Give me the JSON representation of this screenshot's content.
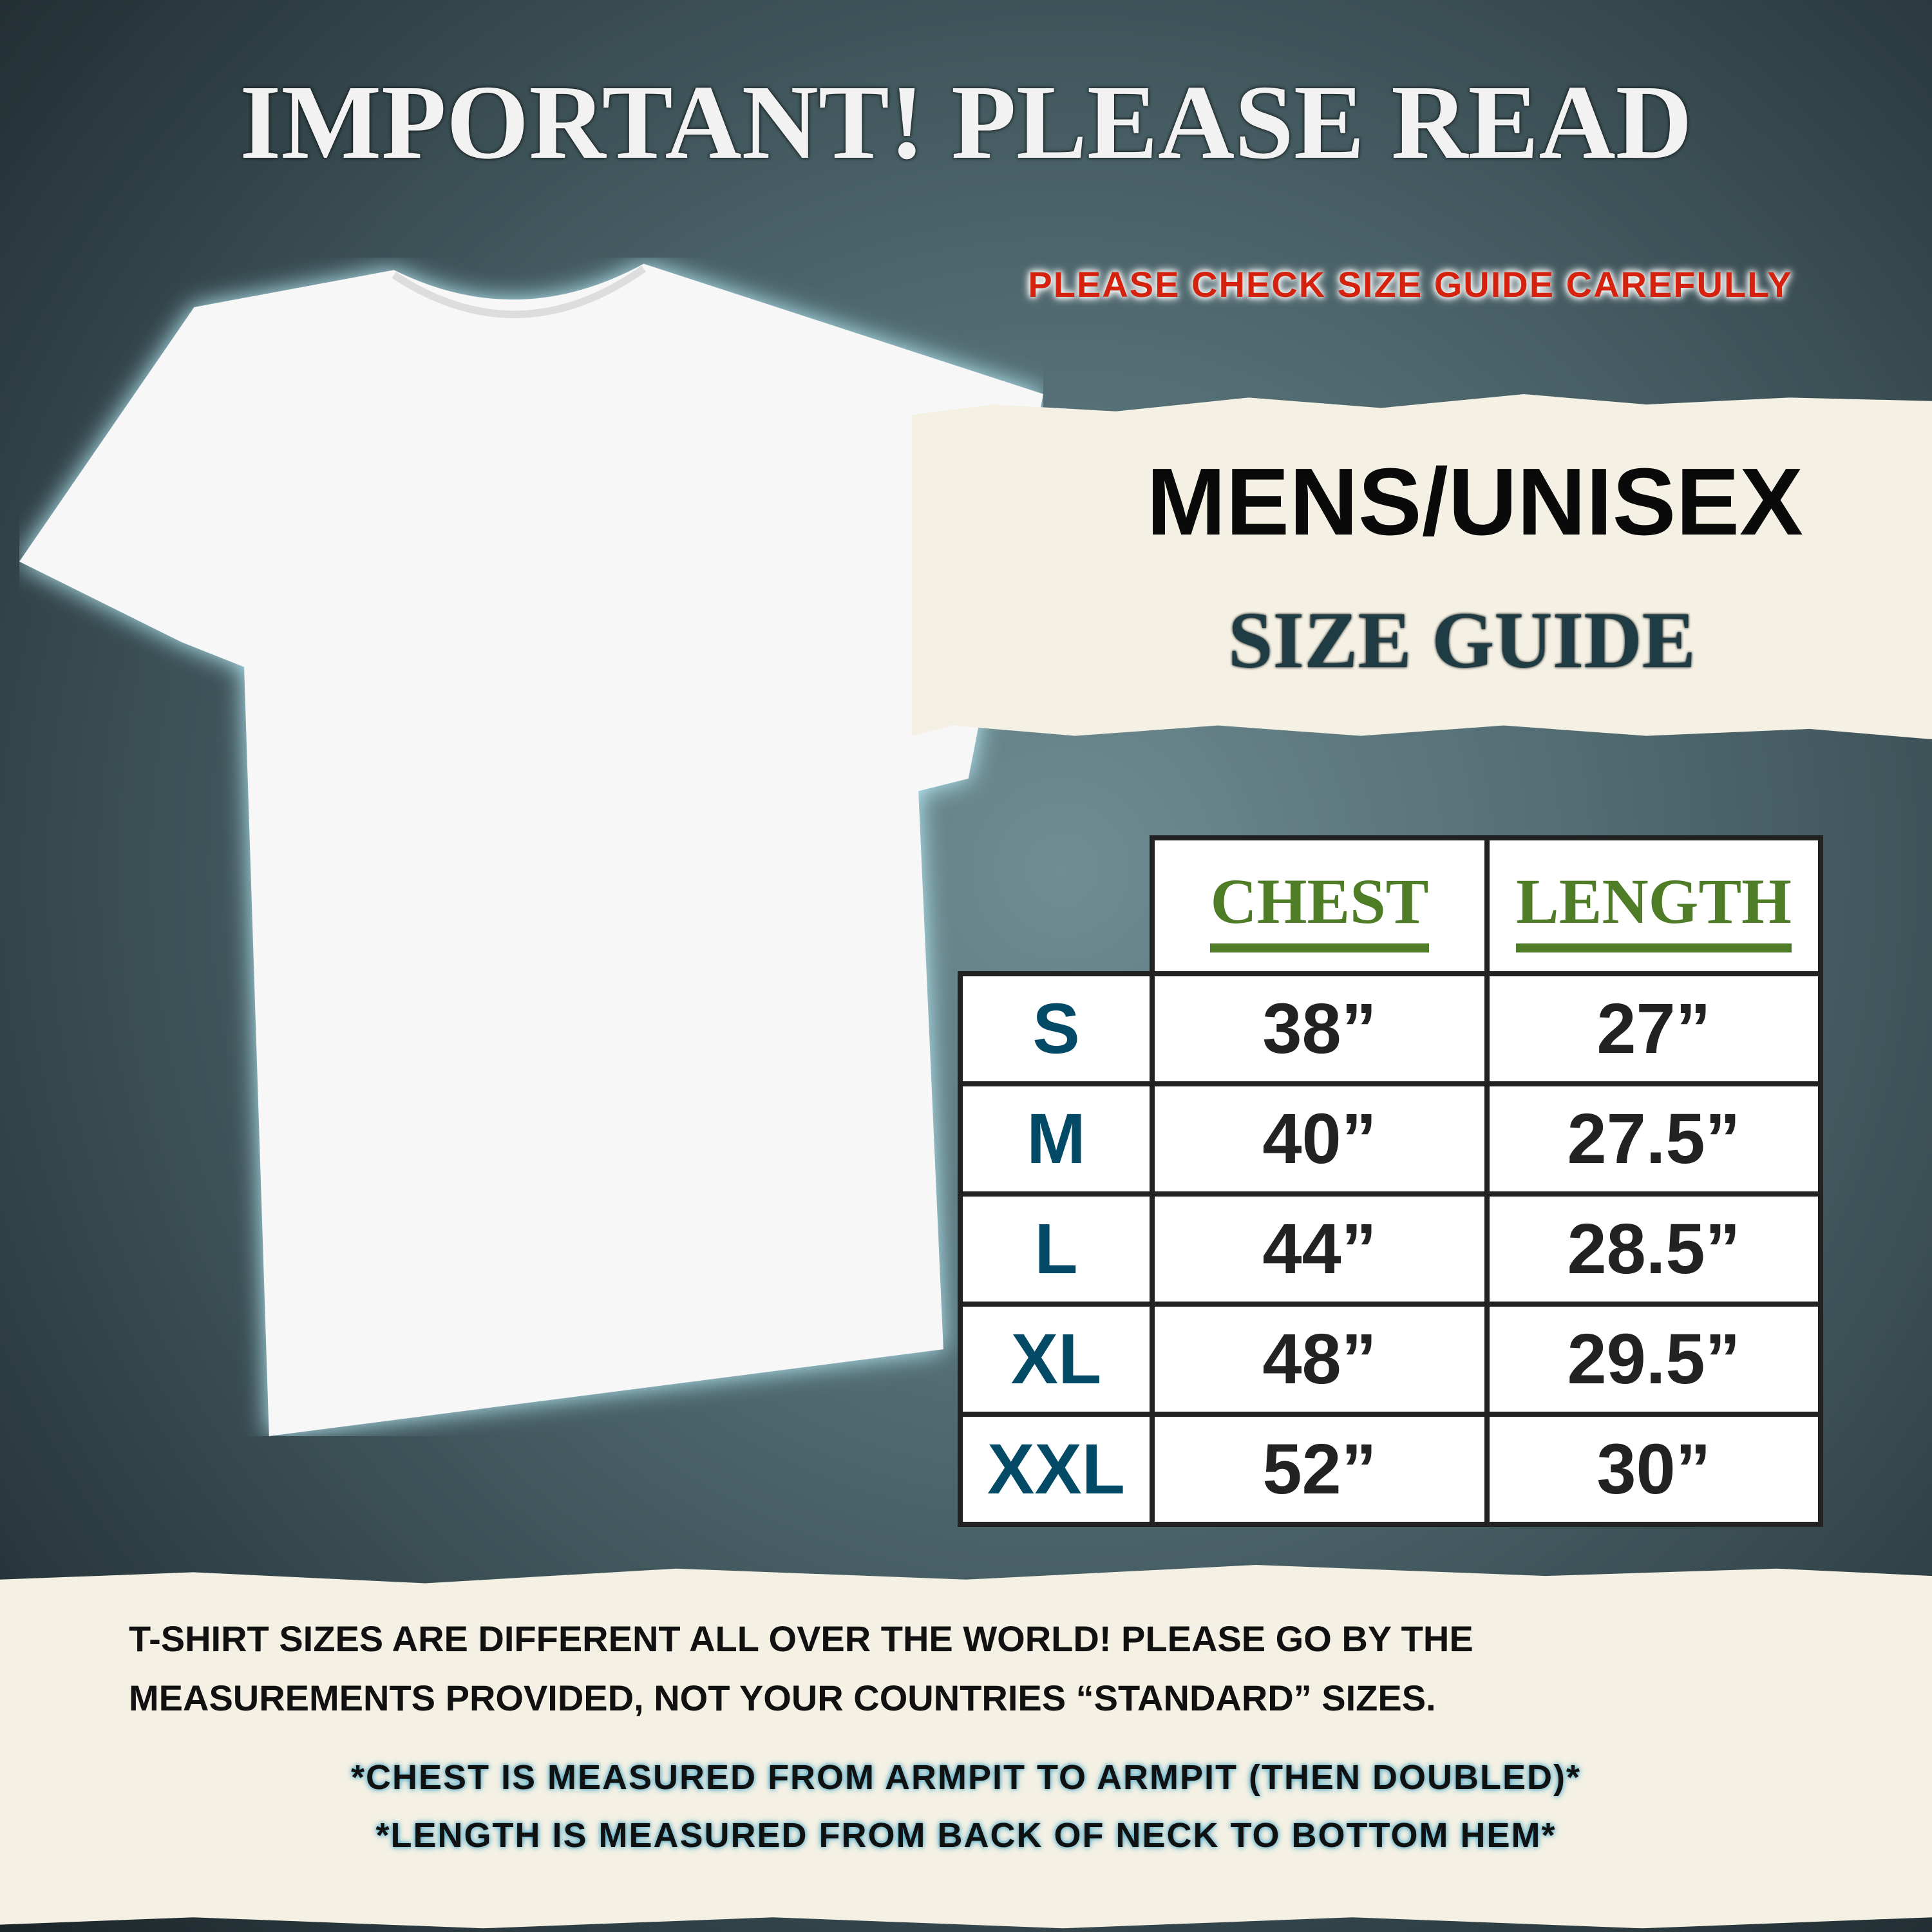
{
  "header": {
    "title": "IMPORTANT! PLEASE READ",
    "subtitle": "PLEASE CHECK SIZE GUIDE CAREFULLY"
  },
  "guide": {
    "heading": "MENS/UNISEX",
    "subheading": "SIZE GUIDE"
  },
  "table": {
    "columns": [
      "CHEST",
      "LENGTH"
    ],
    "rows": [
      {
        "size": "S",
        "chest": "38”",
        "length": "27”"
      },
      {
        "size": "M",
        "chest": "40”",
        "length": "27.5”"
      },
      {
        "size": "L",
        "chest": "44”",
        "length": "28.5”"
      },
      {
        "size": "XL",
        "chest": "48”",
        "length": "29.5”"
      },
      {
        "size": "XXL",
        "chest": "52”",
        "length": "30”"
      }
    ]
  },
  "footer": {
    "line1": "T-SHIRT SIZES ARE DIFFERENT ALL OVER THE WORLD! PLEASE GO BY THE",
    "line2": "MEASUREMENTS PROVIDED, NOT YOUR COUNTRIES “STANDARD” SIZES.",
    "note1": "*CHEST IS MEASURED FROM ARMPIT TO ARMPIT (THEN DOUBLED)*",
    "note2": "*LENGTH IS MEASURED FROM BACK OF NECK TO BOTTOM HEM*"
  },
  "colors": {
    "title": "#f2f2f2",
    "subtitle": "#d4220f",
    "column_header": "#4f7d27",
    "size_label": "#034a66",
    "value": "#222222",
    "paper": "#f4f1e4"
  }
}
